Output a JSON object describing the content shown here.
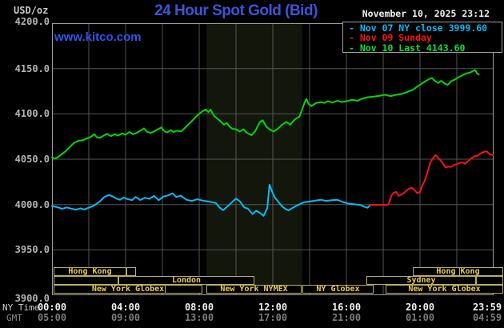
{
  "header": {
    "unit_label": "USD/oz",
    "title": "24 Hour Spot Gold (Bid)",
    "datetime": "November 10, 2025 23:12",
    "watermark": "www.kitco.com"
  },
  "legend": {
    "position": "top-right",
    "items": [
      {
        "dash": "-",
        "label": "Nov 07 NY close 3999.60",
        "color": "#00bdf8"
      },
      {
        "dash": "-",
        "label": "Nov 09 Sunday",
        "color": "#fb1212"
      },
      {
        "dash": "-",
        "label": "Nov 10 Last 4143.60",
        "color": "#00e03a"
      }
    ]
  },
  "chart_data": {
    "type": "line",
    "title": "24 Hour Spot Gold (Bid)",
    "grid": true,
    "x_axis": {
      "label_primary": "NY Time",
      "label_secondary": "GMT",
      "range_hours": [
        0,
        24
      ],
      "grid_interval_hours": 2,
      "ticks": [
        {
          "h": 0,
          "ny": "00:00",
          "gmt": "05:00"
        },
        {
          "h": 4,
          "ny": "04:00",
          "gmt": "09:00"
        },
        {
          "h": 8,
          "ny": "08:00",
          "gmt": "13:00"
        },
        {
          "h": 12,
          "ny": "12:00",
          "gmt": "17:00"
        },
        {
          "h": 16,
          "ny": "16:00",
          "gmt": "21:00"
        },
        {
          "h": 20,
          "ny": "20:00",
          "gmt": "01:00"
        },
        {
          "h": 23.983,
          "ny": "23:59",
          "gmt": "04:59"
        }
      ]
    },
    "y_axis": {
      "range": [
        3900,
        4200
      ],
      "tick_interval": 50,
      "ticks": [
        {
          "value": 4200,
          "label": "4200.0"
        },
        {
          "value": 4150,
          "label": "4150.0"
        },
        {
          "value": 4100,
          "label": "4100.0"
        },
        {
          "value": 4050,
          "label": "4050.0"
        },
        {
          "value": 4000,
          "label": "4000.0"
        },
        {
          "value": 3950,
          "label": "3950.0"
        },
        {
          "value": 3900,
          "label": "3900.0"
        }
      ]
    },
    "shaded_band": {
      "start_h": 8.39,
      "end_h": 13.6,
      "color": "#12160b"
    },
    "series": [
      {
        "name": "Nov 07 NY close",
        "close_value": 3999.6,
        "color": "#00bdf8",
        "points": [
          [
            0.0,
            3998.5
          ],
          [
            0.3,
            3997
          ],
          [
            0.55,
            3995.3
          ],
          [
            0.8,
            3996.8
          ],
          [
            1.05,
            3995.5
          ],
          [
            1.3,
            3994.3
          ],
          [
            1.55,
            3995.8
          ],
          [
            1.75,
            3994.5
          ],
          [
            2.0,
            3996.5
          ],
          [
            2.3,
            3999
          ],
          [
            2.6,
            4003.5
          ],
          [
            2.85,
            4008.5
          ],
          [
            3.1,
            4010.5
          ],
          [
            3.3,
            4009
          ],
          [
            3.5,
            4006.5
          ],
          [
            3.7,
            4005.3
          ],
          [
            3.9,
            4007.8
          ],
          [
            4.1,
            4006
          ],
          [
            4.35,
            4004.8
          ],
          [
            4.55,
            4008.3
          ],
          [
            4.8,
            4005
          ],
          [
            5.05,
            4007.5
          ],
          [
            5.3,
            4006.3
          ],
          [
            5.55,
            4009.5
          ],
          [
            5.8,
            4004.8
          ],
          [
            6.05,
            4008.8
          ],
          [
            6.3,
            4010
          ],
          [
            6.55,
            4012.3
          ],
          [
            6.75,
            4008.3
          ],
          [
            7.0,
            4009.8
          ],
          [
            7.3,
            4005.3
          ],
          [
            7.6,
            4004
          ],
          [
            7.9,
            4005.8
          ],
          [
            8.2,
            4004.3
          ],
          [
            8.6,
            4003
          ],
          [
            8.9,
            4001.8
          ],
          [
            9.1,
            3996.8
          ],
          [
            9.3,
            3993.8
          ],
          [
            9.6,
            3999
          ],
          [
            9.8,
            4003
          ],
          [
            10.0,
            4006.5
          ],
          [
            10.2,
            4003.8
          ],
          [
            10.45,
            3996.8
          ],
          [
            10.65,
            3995.3
          ],
          [
            10.9,
            3989.5
          ],
          [
            11.1,
            3993.3
          ],
          [
            11.3,
            3990.8
          ],
          [
            11.5,
            3987.5
          ],
          [
            11.7,
            3996
          ],
          [
            11.82,
            4022
          ],
          [
            11.95,
            4015
          ],
          [
            12.1,
            4008
          ],
          [
            12.3,
            4003
          ],
          [
            12.5,
            3998
          ],
          [
            12.7,
            3995
          ],
          [
            12.85,
            3993.5
          ],
          [
            13.05,
            3996
          ],
          [
            13.25,
            3998.3
          ],
          [
            13.5,
            4000.8
          ],
          [
            13.7,
            4002.5
          ],
          [
            14.0,
            4003.3
          ],
          [
            14.3,
            4004.3
          ],
          [
            14.6,
            4005.3
          ],
          [
            14.9,
            4004
          ],
          [
            15.2,
            4004.8
          ],
          [
            15.5,
            4005.3
          ],
          [
            15.8,
            4002.8
          ],
          [
            16.1,
            4001
          ],
          [
            16.4,
            4000.3
          ],
          [
            16.75,
            3999.5
          ],
          [
            17.0,
            3997.3
          ],
          [
            17.15,
            3996.5
          ],
          [
            17.3,
            3999.4
          ]
        ]
      },
      {
        "name": "Nov 09 Sunday",
        "color": "#fb1212",
        "points": [
          [
            17.3,
            3999.6
          ],
          [
            18.26,
            3999.6
          ],
          [
            18.35,
            4004
          ],
          [
            18.45,
            4010
          ],
          [
            18.55,
            4012.5
          ],
          [
            18.7,
            4014
          ],
          [
            18.85,
            4009.5
          ],
          [
            19.0,
            4011
          ],
          [
            19.15,
            4013
          ],
          [
            19.35,
            4017
          ],
          [
            19.55,
            4018.5
          ],
          [
            19.7,
            4016
          ],
          [
            19.85,
            4012.5
          ],
          [
            20.0,
            4014
          ],
          [
            20.1,
            4020
          ],
          [
            20.25,
            4026
          ],
          [
            20.4,
            4035
          ],
          [
            20.55,
            4046
          ],
          [
            20.7,
            4051
          ],
          [
            20.85,
            4054.5
          ],
          [
            21.0,
            4051.5
          ],
          [
            21.1,
            4049
          ],
          [
            21.25,
            4045
          ],
          [
            21.4,
            4040.7
          ],
          [
            21.55,
            4042
          ],
          [
            21.7,
            4041.5
          ],
          [
            21.85,
            4043.6
          ],
          [
            22.0,
            4044.5
          ],
          [
            22.15,
            4045.8
          ],
          [
            22.3,
            4046.6
          ],
          [
            22.45,
            4045
          ],
          [
            22.6,
            4047.5
          ],
          [
            22.8,
            4051
          ],
          [
            23.0,
            4053.5
          ],
          [
            23.15,
            4054
          ],
          [
            23.3,
            4056.5
          ],
          [
            23.5,
            4058.3
          ],
          [
            23.65,
            4058.5
          ],
          [
            23.78,
            4055.6
          ],
          [
            23.98,
            4054.3
          ]
        ]
      },
      {
        "name": "Nov 10",
        "last_value": 4143.6,
        "color": "#00d800",
        "points": [
          [
            0.0,
            4052
          ],
          [
            0.15,
            4050.5
          ],
          [
            0.3,
            4052
          ],
          [
            0.5,
            4055
          ],
          [
            0.75,
            4059
          ],
          [
            1.0,
            4064
          ],
          [
            1.2,
            4068
          ],
          [
            1.45,
            4070.5
          ],
          [
            1.7,
            4071
          ],
          [
            1.9,
            4073
          ],
          [
            2.1,
            4074.5
          ],
          [
            2.3,
            4077.5
          ],
          [
            2.45,
            4074
          ],
          [
            2.6,
            4073.5
          ],
          [
            2.8,
            4076
          ],
          [
            3.0,
            4078
          ],
          [
            3.2,
            4075.5
          ],
          [
            3.4,
            4077.5
          ],
          [
            3.6,
            4076
          ],
          [
            3.8,
            4078.5
          ],
          [
            4.0,
            4077
          ],
          [
            4.2,
            4080
          ],
          [
            4.4,
            4077.5
          ],
          [
            4.6,
            4079
          ],
          [
            4.8,
            4081.5
          ],
          [
            5.0,
            4084
          ],
          [
            5.15,
            4080.5
          ],
          [
            5.35,
            4079
          ],
          [
            5.55,
            4080.5
          ],
          [
            5.75,
            4083
          ],
          [
            5.95,
            4085
          ],
          [
            6.1,
            4081
          ],
          [
            6.25,
            4079.5
          ],
          [
            6.45,
            4082
          ],
          [
            6.6,
            4080
          ],
          [
            6.8,
            4081.5
          ],
          [
            7.0,
            4080.5
          ],
          [
            7.2,
            4084
          ],
          [
            7.4,
            4088
          ],
          [
            7.6,
            4092
          ],
          [
            7.8,
            4096.5
          ],
          [
            8.0,
            4100
          ],
          [
            8.15,
            4102.5
          ],
          [
            8.35,
            4104.8
          ],
          [
            8.5,
            4102
          ],
          [
            8.62,
            4104.5
          ],
          [
            8.8,
            4098
          ],
          [
            9.0,
            4094.5
          ],
          [
            9.15,
            4092
          ],
          [
            9.35,
            4088
          ],
          [
            9.5,
            4090
          ],
          [
            9.65,
            4086
          ],
          [
            9.8,
            4083.5
          ],
          [
            10.0,
            4083
          ],
          [
            10.2,
            4080.5
          ],
          [
            10.4,
            4083
          ],
          [
            10.6,
            4079
          ],
          [
            10.85,
            4076.5
          ],
          [
            11.05,
            4081
          ],
          [
            11.3,
            4091
          ],
          [
            11.45,
            4093
          ],
          [
            11.65,
            4086
          ],
          [
            11.85,
            4082.5
          ],
          [
            12.05,
            4080.5
          ],
          [
            12.3,
            4084
          ],
          [
            12.5,
            4088
          ],
          [
            12.75,
            4091
          ],
          [
            12.95,
            4088
          ],
          [
            13.2,
            4094
          ],
          [
            13.45,
            4097
          ],
          [
            13.6,
            4105
          ],
          [
            13.72,
            4112
          ],
          [
            13.82,
            4116.5
          ],
          [
            13.95,
            4111
          ],
          [
            14.1,
            4108.5
          ],
          [
            14.35,
            4112
          ],
          [
            14.6,
            4113
          ],
          [
            14.8,
            4112
          ],
          [
            15.0,
            4114
          ],
          [
            15.25,
            4112.5
          ],
          [
            15.5,
            4114.5
          ],
          [
            15.75,
            4113
          ],
          [
            16.0,
            4114
          ],
          [
            16.3,
            4115.5
          ],
          [
            16.6,
            4114.5
          ],
          [
            16.9,
            4117
          ],
          [
            17.2,
            4118.5
          ],
          [
            17.5,
            4119
          ],
          [
            17.8,
            4120
          ],
          [
            18.1,
            4121
          ],
          [
            18.4,
            4119.5
          ],
          [
            18.7,
            4121
          ],
          [
            19.0,
            4122
          ],
          [
            19.3,
            4124
          ],
          [
            19.6,
            4126.5
          ],
          [
            19.85,
            4130
          ],
          [
            20.1,
            4133.5
          ],
          [
            20.3,
            4136
          ],
          [
            20.5,
            4138.5
          ],
          [
            20.65,
            4139.5
          ],
          [
            20.8,
            4136.5
          ],
          [
            21.0,
            4134
          ],
          [
            21.15,
            4136.5
          ],
          [
            21.35,
            4133.5
          ],
          [
            21.5,
            4132
          ],
          [
            21.7,
            4136
          ],
          [
            21.9,
            4138
          ],
          [
            22.1,
            4140.5
          ],
          [
            22.3,
            4142.5
          ],
          [
            22.5,
            4144.5
          ],
          [
            22.7,
            4145.5
          ],
          [
            22.85,
            4147
          ],
          [
            23.0,
            4148.4
          ],
          [
            23.1,
            4144.5
          ],
          [
            23.2,
            4143.6
          ]
        ]
      }
    ],
    "sessions": {
      "rows": [
        [
          {
            "start_h": 0.09,
            "end_h": 4.04,
            "label": "Hong Kong"
          },
          {
            "start_h": 4.04,
            "end_h": 4.57,
            "label": ""
          },
          {
            "start_h": 19.61,
            "end_h": 24.52,
            "label": "Hong Kong",
            "dividers": [
              22.09
            ]
          }
        ],
        [
          {
            "start_h": 0.09,
            "end_h": 3.61,
            "label": ""
          },
          {
            "start_h": 3.61,
            "end_h": 11.0,
            "label": "London"
          },
          {
            "start_h": 17.09,
            "end_h": 23.04,
            "label": "Sydney"
          },
          {
            "start_h": 23.04,
            "end_h": 24.52,
            "label": ""
          }
        ],
        [
          {
            "start_h": 0.09,
            "end_h": 8.17,
            "label": "New York Globex",
            "dividers": [
              6.09
            ]
          },
          {
            "start_h": 8.39,
            "end_h": 13.57,
            "label": "New York NYMEX"
          },
          {
            "start_h": 13.61,
            "end_h": 17.48,
            "label": "NY Globex"
          },
          {
            "start_h": 18.13,
            "end_h": 24.52,
            "label": "New York Globex"
          }
        ]
      ]
    }
  }
}
